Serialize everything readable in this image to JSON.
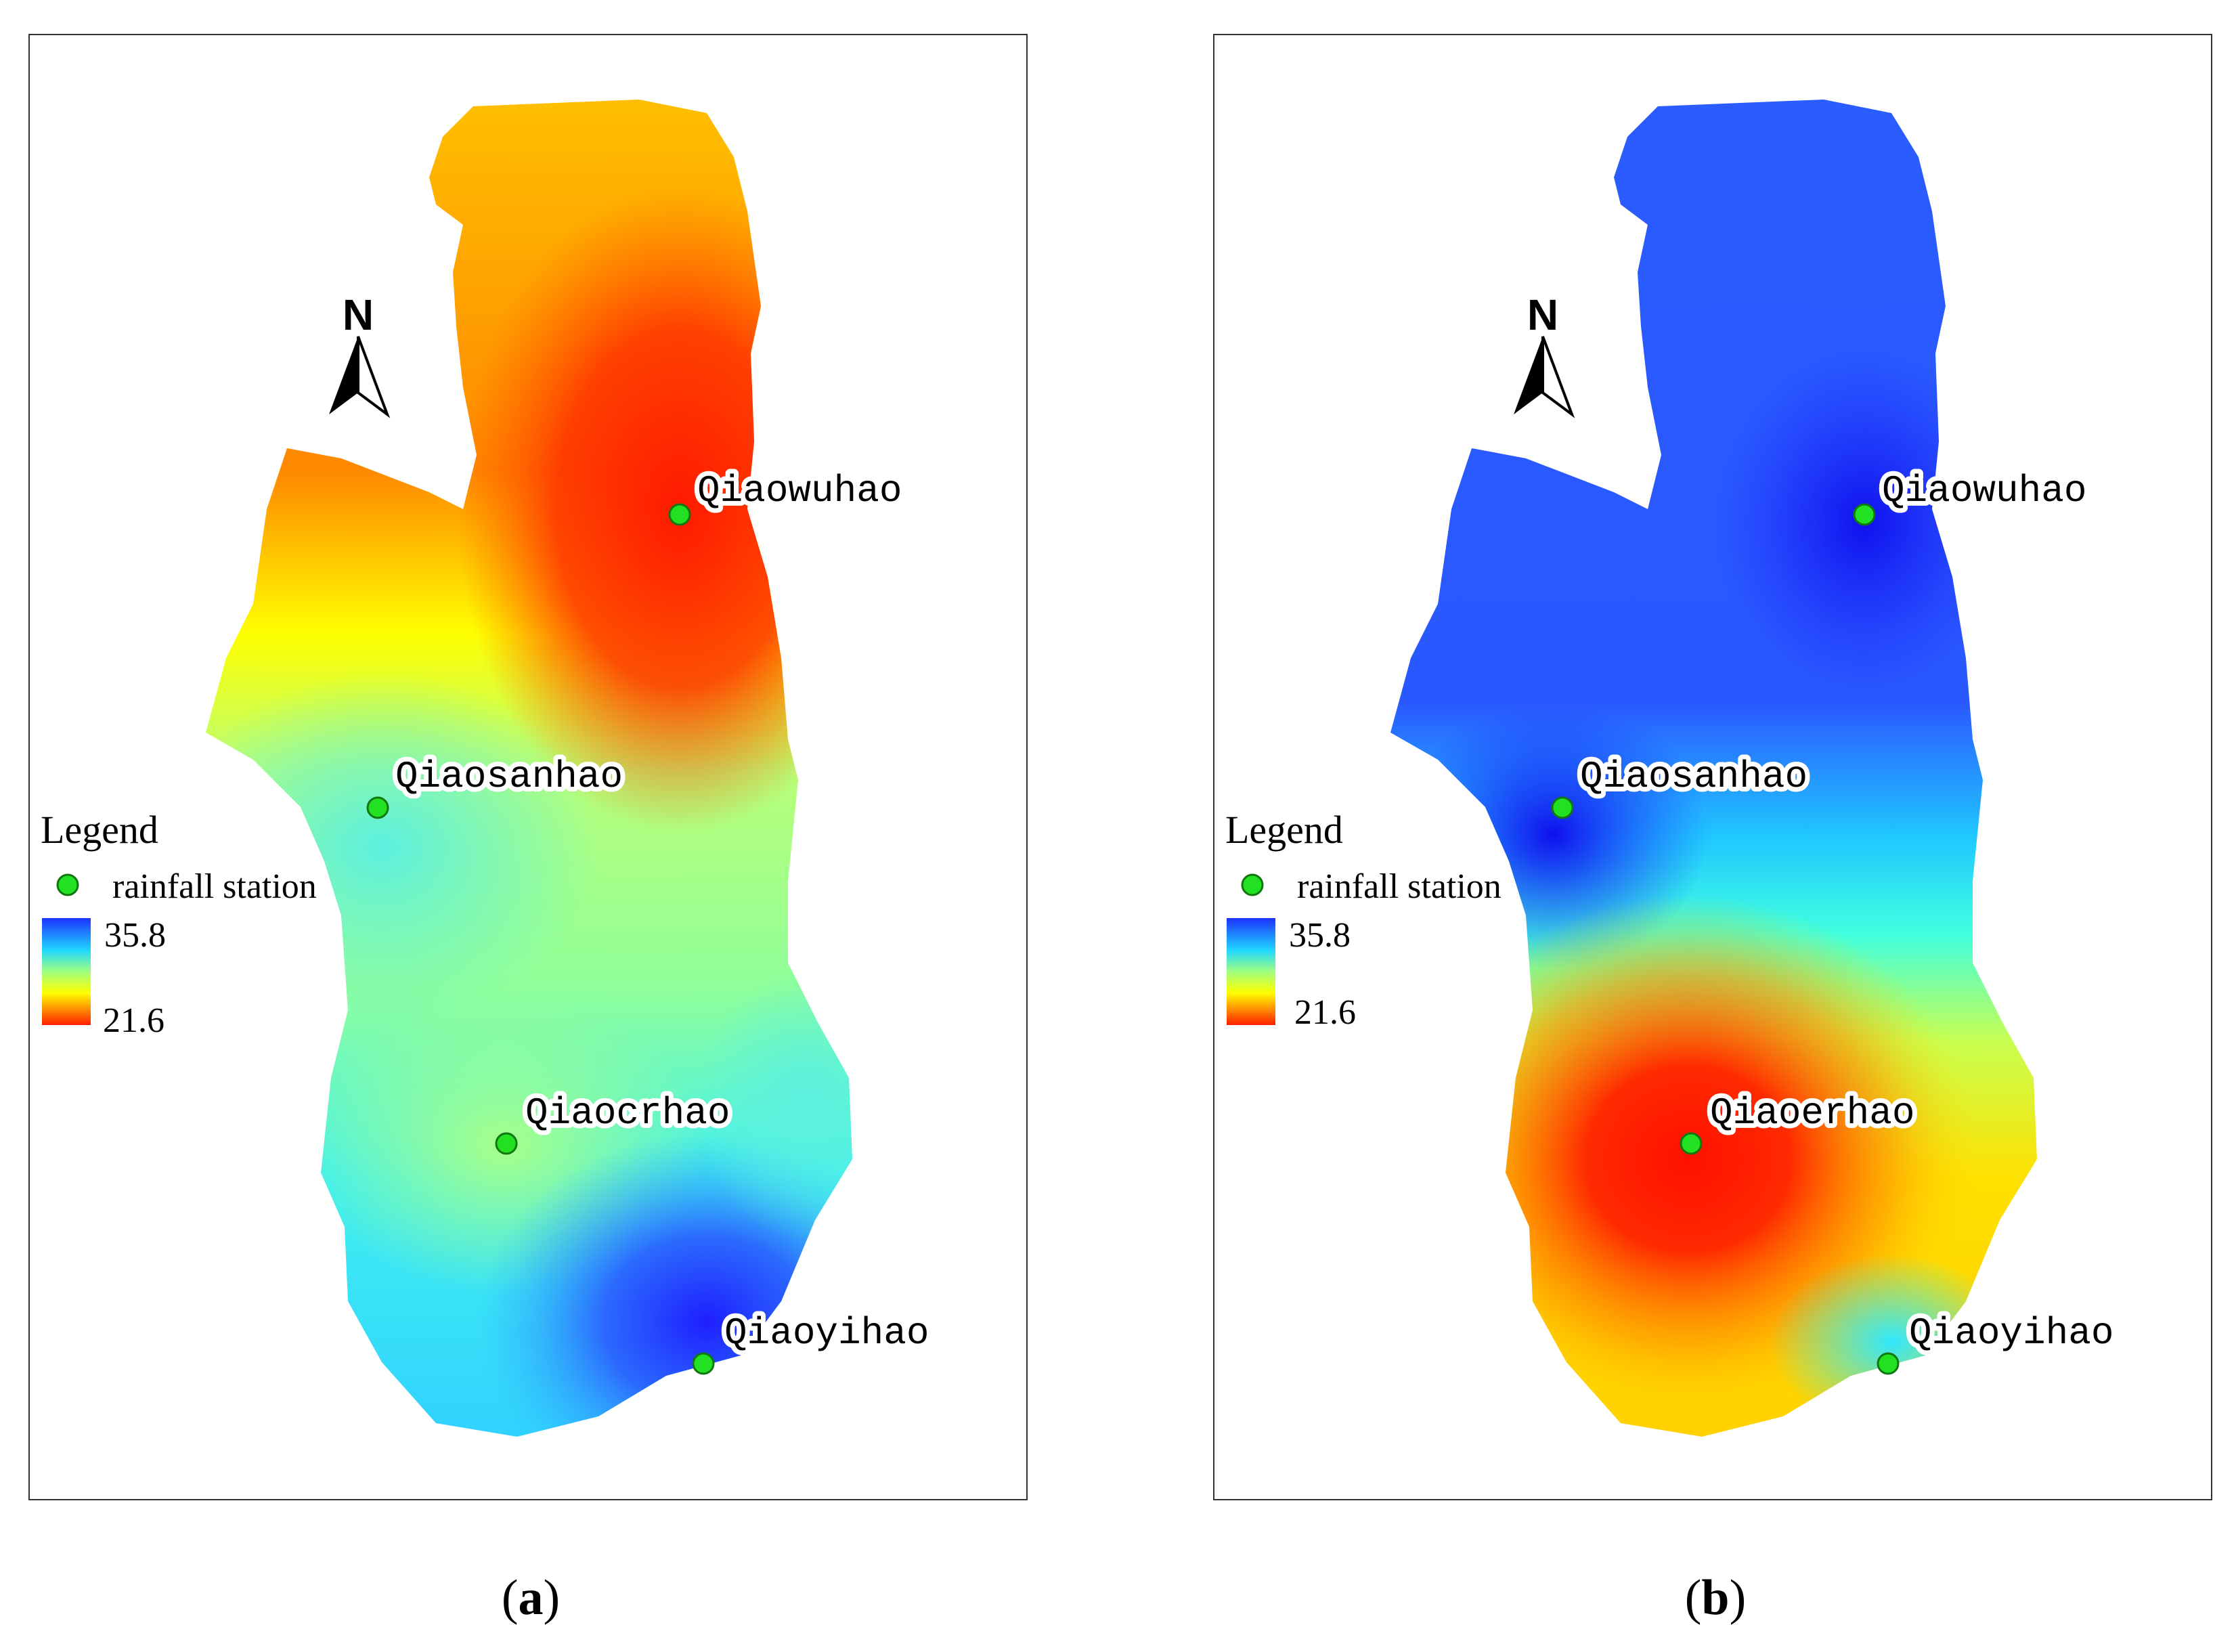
{
  "panels": [
    {
      "caption_letter": "a",
      "north_label": "N",
      "legend": {
        "title": "Legend",
        "station_label": "rainfall station",
        "max": "35.8",
        "min": "21.6"
      },
      "stations": [
        {
          "name": "Qiaowuhao"
        },
        {
          "name": "Qiaosanhao"
        },
        {
          "name": "Qiaocrhao"
        },
        {
          "name": "Qiaoyihao"
        }
      ],
      "colors": {
        "high": "#1e32ff",
        "low": "#ff1e00",
        "station": "#22e022"
      }
    },
    {
      "caption_letter": "b",
      "north_label": "N",
      "legend": {
        "title": "Legend",
        "station_label": "rainfall station",
        "max": "35.8",
        "min": "21.6"
      },
      "stations": [
        {
          "name": "Qiaowuhao"
        },
        {
          "name": "Qiaosanhao"
        },
        {
          "name": "Qiaoerhao"
        },
        {
          "name": "Qiaoyihao"
        }
      ],
      "colors": {
        "high": "#1e32ff",
        "low": "#ff1e00",
        "station": "#22e022"
      }
    }
  ]
}
